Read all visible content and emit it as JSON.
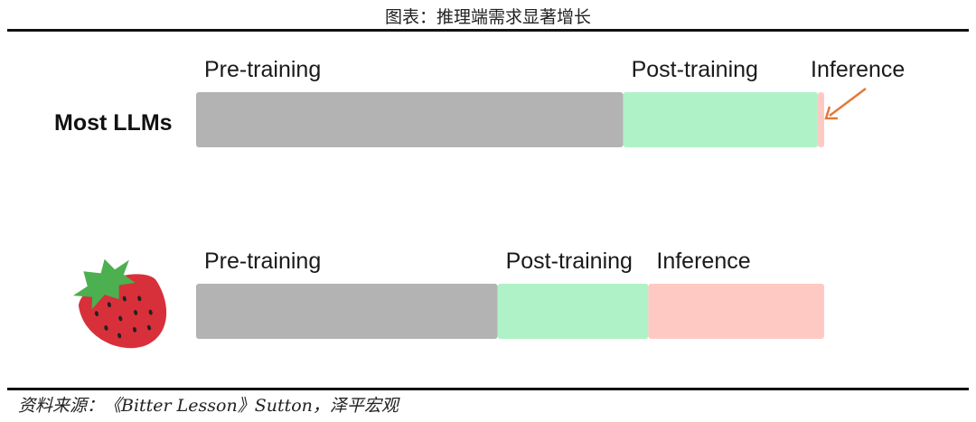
{
  "title": "图表：推理端需求显著增长",
  "source": "资料来源：《Bitter Lesson》Sutton，泽平宏观",
  "chart_data": {
    "type": "bar",
    "orientation": "horizontal-stacked",
    "unit": "share of compute (%)",
    "categories": [
      "Most LLMs",
      "strawberry"
    ],
    "row_icons": [
      null,
      "strawberry-icon"
    ],
    "series": [
      {
        "name": "Pre-training",
        "values": [
          68,
          48
        ],
        "color": "#b3b3b3"
      },
      {
        "name": "Post-training",
        "values": [
          31,
          24
        ],
        "color": "#b0f2c8"
      },
      {
        "name": "Inference",
        "values": [
          1,
          28
        ],
        "color": "#ffc9c3"
      }
    ],
    "annotation": {
      "target": "Most LLMs Inference",
      "arrow_color": "#e07a3a"
    },
    "xlim": [
      0,
      100
    ],
    "grid": false,
    "axes_visible": false
  }
}
